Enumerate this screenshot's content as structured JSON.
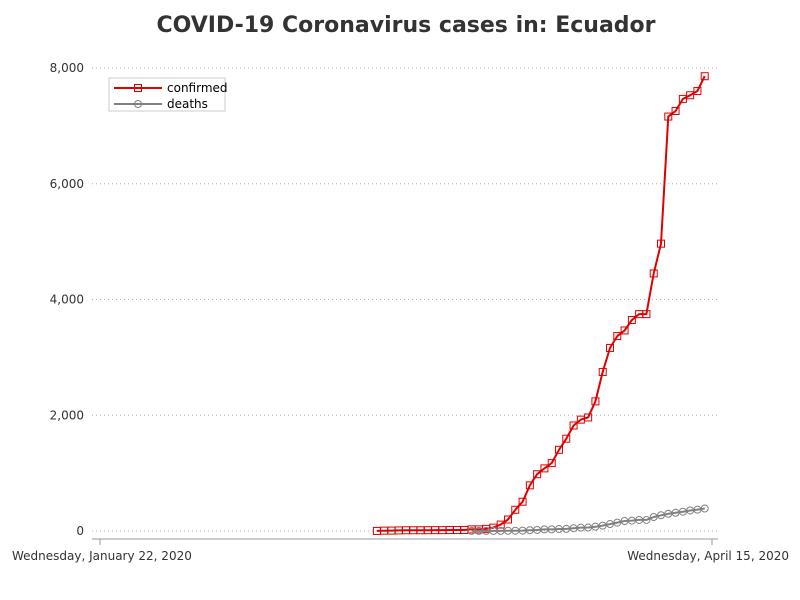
{
  "chart_data": {
    "type": "line",
    "title": "COVID-19 Coronavirus cases in: Ecuador",
    "xlabel": "",
    "ylabel": "",
    "x_start": "2020-01-22",
    "x_end": "2020-04-15",
    "x_tick_labels": [
      "Wednesday, January 22, 2020",
      "Wednesday, April 15, 2020"
    ],
    "y_ticks": [
      0,
      2000,
      4000,
      6000,
      8000
    ],
    "y_tick_labels": [
      "0",
      "2,000",
      "4,000",
      "6,000",
      "8,000"
    ],
    "ylim": [
      0,
      8000
    ],
    "grid": "horizontal-dotted",
    "legend_position": "top-left",
    "series": [
      {
        "name": "confirmed",
        "color": "#e00000",
        "marker": "square",
        "start_date": "2020-02-29",
        "values": [
          1,
          6,
          7,
          10,
          13,
          13,
          13,
          14,
          15,
          15,
          17,
          17,
          17,
          28,
          28,
          37,
          58,
          111,
          199,
          367,
          506,
          789,
          981,
          1082,
          1173,
          1403,
          1595,
          1823,
          1924,
          1962,
          2240,
          2748,
          3163,
          3368,
          3465,
          3646,
          3747,
          3747,
          4450,
          4965,
          7161,
          7257,
          7466,
          7529,
          7603,
          7858
        ]
      },
      {
        "name": "deaths",
        "color": "#808080",
        "marker": "circle",
        "start_date": "2020-03-13",
        "values": [
          2,
          2,
          2,
          2,
          2,
          4,
          5,
          7,
          14,
          18,
          27,
          28,
          34,
          36,
          48,
          58,
          60,
          75,
          93,
          120,
          145,
          172,
          180,
          191,
          191,
          242,
          272,
          297,
          315,
          333,
          355,
          369,
          388
        ]
      }
    ]
  }
}
